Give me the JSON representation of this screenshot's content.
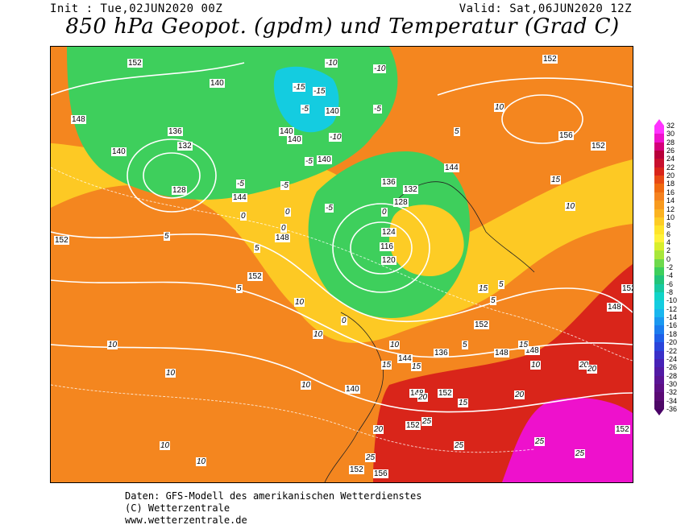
{
  "header": {
    "init": "Init : Tue,02JUN2020 00Z",
    "valid": "Valid: Sat,06JUN2020 12Z",
    "title": "850 hPa Geopot. (gpdm) und Temperatur (Grad C)"
  },
  "scale": {
    "labels": [
      "32",
      "30",
      "28",
      "26",
      "24",
      "22",
      "20",
      "18",
      "16",
      "14",
      "12",
      "10",
      "8",
      "6",
      "4",
      "2",
      "0",
      "-2",
      "-4",
      "-6",
      "-8",
      "-10",
      "-12",
      "-14",
      "-16",
      "-18",
      "-20",
      "-22",
      "-24",
      "-26",
      "-28",
      "-30",
      "-32",
      "-34",
      "-36"
    ],
    "colors": [
      "#ff33ff",
      "#ee11cc",
      "#d4007a",
      "#b8003a",
      "#c8102e",
      "#d9251a",
      "#e84a14",
      "#f06a10",
      "#f5821f",
      "#f89a1e",
      "#fbb321",
      "#fdcc25",
      "#ffe42a",
      "#fff23a",
      "#d8ee2c",
      "#a8e63a",
      "#6ed94d",
      "#3ecf5c",
      "#22c47a",
      "#18c9a0",
      "#11d4c8",
      "#14cce0",
      "#19b6ee",
      "#1a98f0",
      "#1b7cee",
      "#1f5fe8",
      "#2a44da",
      "#3a30c8",
      "#4722b6",
      "#521aa4",
      "#5a1494",
      "#5d0f84",
      "#5a0a74",
      "#4d0866"
    ]
  },
  "map": {
    "geopotential_labels": [
      "152",
      "140",
      "148",
      "136",
      "132",
      "128",
      "140",
      "144",
      "140",
      "140",
      "136",
      "132",
      "128",
      "124",
      "116",
      "120",
      "148",
      "152",
      "152",
      "156",
      "152",
      "152",
      "148",
      "144",
      "148",
      "136",
      "140",
      "152",
      "152",
      "148",
      "152",
      "152",
      "156",
      "152",
      "148",
      "152",
      "144",
      "140",
      "140"
    ],
    "temperature_labels": [
      "-10",
      "-10",
      "-15",
      "-15",
      "-5",
      "-5",
      "-10",
      "-5",
      "-5",
      "-5",
      "-5",
      "0",
      "0",
      "5",
      "5",
      "10",
      "10",
      "10",
      "15",
      "15",
      "10",
      "5",
      "10",
      "10",
      "10",
      "15",
      "5",
      "5",
      "5",
      "10",
      "10",
      "15",
      "20",
      "20",
      "20",
      "20",
      "25",
      "25",
      "25",
      "25",
      "25",
      "20",
      "15",
      "15",
      "10",
      "10",
      "5",
      "0",
      "0",
      "0"
    ]
  },
  "footer": {
    "line1": "Daten: GFS-Modell des amerikanischen Wetterdienstes",
    "line2": "(C) Wetterzentrale",
    "line3": "www.wetterzentrale.de"
  }
}
